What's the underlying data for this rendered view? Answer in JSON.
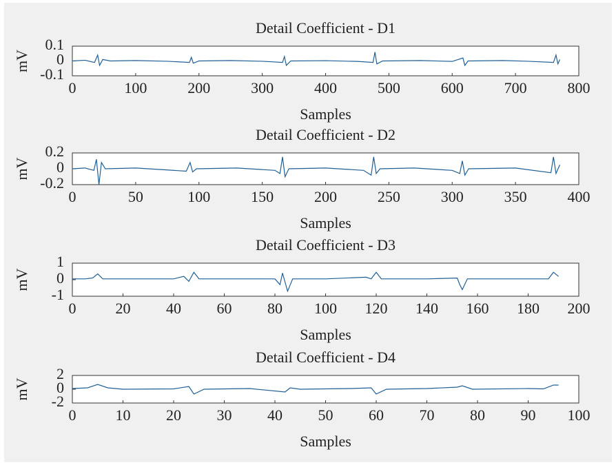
{
  "chart_data": [
    {
      "type": "line",
      "title": "Detail Coefficient - D1",
      "xlabel": "Samples",
      "ylabel": "mV",
      "color": "#1f5f96",
      "x": [
        0,
        20,
        35,
        40,
        43,
        48,
        60,
        100,
        150,
        185,
        188,
        191,
        200,
        250,
        300,
        332,
        335,
        338,
        345,
        400,
        450,
        475,
        478,
        481,
        490,
        550,
        600,
        617,
        620,
        625,
        680,
        720,
        760,
        764,
        767,
        770
      ],
      "values": [
        0,
        0.005,
        -0.01,
        0.04,
        -0.03,
        0.01,
        0,
        0.003,
        -0.002,
        -0.01,
        0.025,
        -0.015,
        0,
        0.003,
        -0.002,
        -0.01,
        0.03,
        -0.03,
        0,
        0.002,
        -0.003,
        -0.01,
        0.06,
        -0.02,
        0,
        0.003,
        -0.003,
        0.02,
        -0.03,
        0,
        0.003,
        -0.002,
        -0.01,
        0.04,
        -0.02,
        0.01
      ],
      "xlim": [
        0,
        800
      ],
      "ylim": [
        -0.1,
        0.1
      ],
      "xticks": [
        0,
        100,
        200,
        300,
        400,
        500,
        600,
        700,
        800
      ],
      "yticks": [
        -0.1,
        0,
        0.1
      ]
    },
    {
      "type": "line",
      "title": "Detail Coefficient - D2",
      "xlabel": "Samples",
      "ylabel": "mV",
      "color": "#1f5f96",
      "x": [
        0,
        10,
        17,
        19,
        21,
        23,
        26,
        50,
        70,
        90,
        93,
        95,
        98,
        130,
        160,
        164,
        166,
        168,
        171,
        200,
        230,
        236,
        238,
        240,
        243,
        270,
        300,
        306,
        308,
        310,
        313,
        350,
        378,
        380,
        382,
        385
      ],
      "values": [
        0,
        0.01,
        -0.02,
        0.12,
        -0.2,
        0.08,
        0,
        0.01,
        -0.01,
        -0.03,
        0.08,
        -0.04,
        0,
        0.01,
        -0.02,
        -0.06,
        0.15,
        -0.1,
        0,
        0.01,
        -0.02,
        -0.08,
        0.15,
        -0.06,
        0,
        0.01,
        -0.02,
        -0.06,
        0.1,
        -0.08,
        0,
        0.01,
        -0.05,
        0.15,
        -0.06,
        0.05
      ],
      "xlim": [
        0,
        400
      ],
      "ylim": [
        -0.2,
        0.2
      ],
      "xticks": [
        0,
        50,
        100,
        150,
        200,
        250,
        300,
        350,
        400
      ],
      "yticks": [
        -0.2,
        0,
        0.2
      ]
    },
    {
      "type": "line",
      "title": "Detail Coefficient - D3",
      "xlabel": "Samples",
      "ylabel": "mV",
      "color": "#1f5f96",
      "x": [
        0,
        5,
        8,
        10,
        12,
        20,
        40,
        44,
        46,
        48,
        50,
        60,
        80,
        82,
        83,
        85,
        87,
        100,
        116,
        118,
        120,
        122,
        140,
        152,
        153,
        154,
        156,
        170,
        188,
        190,
        192
      ],
      "values": [
        0.05,
        0.05,
        0.1,
        0.35,
        0.05,
        0.05,
        0.05,
        0.2,
        -0.1,
        0.45,
        0.05,
        0.05,
        0.05,
        -0.3,
        0.4,
        -0.7,
        0.05,
        0.05,
        0.15,
        0.05,
        0.45,
        0.05,
        0.05,
        0.1,
        -0.3,
        -0.6,
        0.05,
        0.05,
        0.05,
        0.45,
        0.2
      ],
      "xlim": [
        0,
        200
      ],
      "ylim": [
        -1,
        1
      ],
      "xticks": [
        0,
        20,
        40,
        60,
        80,
        100,
        120,
        140,
        160,
        180,
        200
      ],
      "yticks": [
        -1,
        0,
        1
      ]
    },
    {
      "type": "line",
      "title": "Detail Coefficient - D4",
      "xlabel": "Samples",
      "ylabel": "mV",
      "color": "#1f5f96",
      "x": [
        0,
        3,
        5,
        7,
        10,
        20,
        23,
        24,
        26,
        35,
        42,
        43,
        45,
        55,
        59,
        60,
        62,
        70,
        76,
        77,
        79,
        90,
        93,
        95,
        96
      ],
      "values": [
        0.1,
        0.2,
        0.7,
        0.2,
        0,
        0.05,
        0.4,
        -0.7,
        0,
        0.1,
        -0.4,
        0.2,
        0,
        0.1,
        0.2,
        -0.7,
        0,
        0.1,
        0.3,
        0.5,
        0,
        0.1,
        0.05,
        0.6,
        0.6
      ],
      "xlim": [
        0,
        100
      ],
      "ylim": [
        -2,
        2
      ],
      "xticks": [
        0,
        10,
        20,
        30,
        40,
        50,
        60,
        70,
        80,
        90,
        100
      ],
      "yticks": [
        -2,
        0,
        2
      ]
    }
  ]
}
